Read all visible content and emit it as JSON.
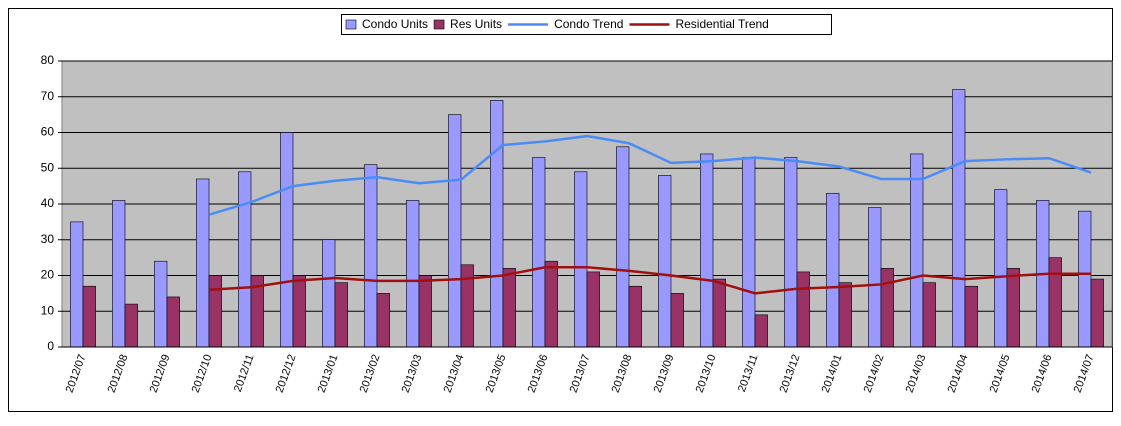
{
  "chart_data": {
    "type": "bar",
    "categories": [
      "2012/07",
      "2012/08",
      "2012/09",
      "2012/10",
      "2012/11",
      "2012/12",
      "2013/01",
      "2013/02",
      "2013/03",
      "2013/04",
      "2013/05",
      "2013/06",
      "2013/07",
      "2013/08",
      "2013/09",
      "2013/10",
      "2013/11",
      "2013/12",
      "2014/01",
      "2014/02",
      "2014/03",
      "2014/04",
      "2014/05",
      "2014/06",
      "2014/07"
    ],
    "series": [
      {
        "name": "Condo Units",
        "type": "bar",
        "color": "#9999ff",
        "values": [
          35,
          41,
          24,
          47,
          49,
          60,
          30,
          51,
          41,
          65,
          69,
          53,
          49,
          56,
          48,
          54,
          53,
          53,
          43,
          39,
          54,
          72,
          44,
          41,
          38
        ]
      },
      {
        "name": "Res Units",
        "type": "bar",
        "color": "#993366",
        "values": [
          17,
          12,
          14,
          20,
          20,
          20,
          18,
          15,
          20,
          23,
          22,
          24,
          21,
          17,
          15,
          19,
          9,
          21,
          18,
          22,
          18,
          17,
          22,
          25,
          19
        ]
      },
      {
        "name": "Condo Trend",
        "type": "line",
        "color": "#4a8cf7",
        "values": [
          null,
          null,
          null,
          37,
          40.5,
          45,
          46.5,
          47.5,
          45.8,
          46.8,
          56.5,
          57.5,
          59,
          57,
          51.5,
          52,
          53,
          52,
          50.5,
          47,
          47,
          52,
          52.5,
          52.8,
          48.8
        ]
      },
      {
        "name": "Residential Trend",
        "type": "line",
        "color": "#a01010",
        "values": [
          null,
          null,
          null,
          16,
          16.7,
          18.5,
          19.3,
          18.5,
          18.5,
          19,
          20,
          22.3,
          22.3,
          21.3,
          20,
          18.5,
          15,
          16.3,
          16.8,
          17.5,
          20,
          19,
          19.8,
          20.5,
          20.5
        ]
      }
    ],
    "ylim": [
      0,
      80
    ],
    "yticks": [
      0,
      10,
      20,
      30,
      40,
      50,
      60,
      70,
      80
    ],
    "grid": true
  }
}
